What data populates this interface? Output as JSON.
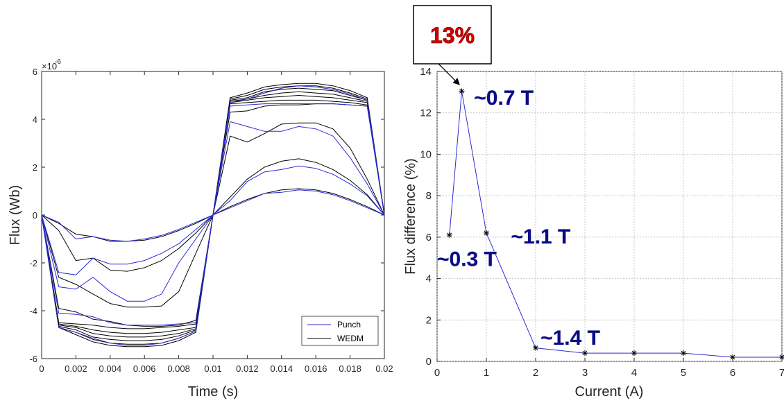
{
  "colors": {
    "punch": "#2a2ad6",
    "wedm": "#000000",
    "right_series": "#2a2ad6",
    "callout_text": "#d40000",
    "annotation_text": "#0a0a8c"
  },
  "chart_data": [
    {
      "type": "line",
      "title": "",
      "xlabel": "Time (s)",
      "ylabel": "Flux (Wb)",
      "y_exponent_label": "×10",
      "y_exponent_power": "-6",
      "xlim": [
        0,
        0.02
      ],
      "ylim": [
        -6,
        6
      ],
      "xticks": [
        "0",
        "0.002",
        "0.004",
        "0.006",
        "0.008",
        "0.01",
        "0.012",
        "0.014",
        "0.016",
        "0.018",
        "0.02"
      ],
      "yticks": [
        "-6",
        "-4",
        "-2",
        "0",
        "2",
        "4",
        "6"
      ],
      "grid": false,
      "legend_position": "bottom-right",
      "x": [
        0,
        0.001,
        0.002,
        0.003,
        0.004,
        0.005,
        0.006,
        0.007,
        0.008,
        0.009,
        0.01,
        0.011,
        0.012,
        0.013,
        0.014,
        0.015,
        0.016,
        0.017,
        0.018,
        0.019,
        0.02
      ],
      "series": [
        {
          "name": "Punch",
          "curves": [
            [
              0,
              -0.3,
              -1.0,
              -0.9,
              -1.05,
              -1.1,
              -1.0,
              -0.85,
              -0.6,
              -0.3,
              0,
              0.3,
              0.6,
              0.9,
              0.95,
              1.05,
              1.0,
              0.85,
              0.6,
              0.3,
              0
            ],
            [
              0,
              -2.4,
              -2.5,
              -1.8,
              -2.05,
              -2.05,
              -1.9,
              -1.6,
              -1.2,
              -0.6,
              0,
              0.6,
              1.4,
              1.8,
              1.9,
              2.05,
              1.95,
              1.7,
              1.3,
              0.8,
              0
            ],
            [
              0,
              -3.0,
              -3.1,
              -2.6,
              -3.2,
              -3.6,
              -3.6,
              -3.3,
              -2.0,
              -1.0,
              0,
              3.9,
              3.7,
              3.5,
              3.5,
              3.7,
              3.6,
              3.3,
              2.4,
              1.3,
              0
            ],
            [
              0,
              -4.1,
              -4.15,
              -4.25,
              -4.5,
              -4.6,
              -4.6,
              -4.6,
              -4.55,
              -4.5,
              0,
              4.55,
              4.6,
              4.65,
              4.65,
              4.65,
              4.65,
              4.65,
              4.6,
              4.55,
              0
            ],
            [
              0,
              -4.7,
              -4.9,
              -5.15,
              -5.35,
              -5.45,
              -5.45,
              -5.35,
              -5.15,
              -4.85,
              0,
              4.7,
              4.85,
              5.1,
              5.3,
              5.4,
              5.35,
              5.25,
              5.05,
              4.8,
              0
            ]
          ]
        },
        {
          "name": "WEDM",
          "curves": [
            [
              0,
              -0.35,
              -0.8,
              -0.9,
              -1.1,
              -1.1,
              -1.05,
              -0.9,
              -0.65,
              -0.35,
              0,
              0.35,
              0.65,
              0.9,
              1.05,
              1.1,
              1.05,
              0.9,
              0.65,
              0.35,
              0
            ],
            [
              0,
              -0.65,
              -1.9,
              -1.8,
              -2.3,
              -2.35,
              -2.2,
              -1.9,
              -1.4,
              -0.75,
              0,
              0.75,
              1.5,
              2.0,
              2.25,
              2.35,
              2.2,
              1.9,
              1.45,
              0.85,
              0
            ],
            [
              0,
              -2.6,
              -2.9,
              -3.3,
              -3.7,
              -3.85,
              -3.85,
              -3.8,
              -3.2,
              -1.6,
              0,
              3.3,
              3.05,
              3.4,
              3.8,
              3.85,
              3.85,
              3.6,
              2.8,
              1.5,
              0
            ],
            [
              0,
              -3.9,
              -4.05,
              -4.35,
              -4.45,
              -4.6,
              -4.65,
              -4.65,
              -4.6,
              -4.4,
              0,
              4.3,
              4.35,
              4.55,
              4.6,
              4.6,
              4.65,
              4.65,
              4.6,
              4.55,
              0
            ],
            [
              0,
              -4.5,
              -4.55,
              -4.6,
              -4.7,
              -4.75,
              -4.75,
              -4.7,
              -4.65,
              -4.55,
              0,
              4.65,
              4.7,
              4.75,
              4.8,
              4.8,
              4.8,
              4.75,
              4.7,
              4.6,
              0
            ],
            [
              0,
              -4.55,
              -4.65,
              -4.8,
              -4.9,
              -4.95,
              -4.95,
              -4.9,
              -4.8,
              -4.7,
              0,
              4.7,
              4.8,
              4.9,
              4.95,
              5.0,
              4.95,
              4.9,
              4.8,
              4.7,
              0
            ],
            [
              0,
              -4.6,
              -4.7,
              -4.95,
              -5.05,
              -5.1,
              -5.1,
              -5.05,
              -4.95,
              -4.75,
              0,
              4.75,
              4.85,
              5.0,
              5.1,
              5.15,
              5.1,
              5.05,
              4.9,
              4.75,
              0
            ],
            [
              0,
              -4.65,
              -4.8,
              -5.1,
              -5.2,
              -5.25,
              -5.25,
              -5.2,
              -5.05,
              -4.8,
              0,
              4.8,
              4.9,
              5.15,
              5.25,
              5.3,
              5.25,
              5.2,
              5.0,
              4.8,
              0
            ],
            [
              0,
              -4.7,
              -4.9,
              -5.2,
              -5.35,
              -5.4,
              -5.4,
              -5.35,
              -5.15,
              -4.85,
              0,
              4.85,
              5.0,
              5.25,
              5.35,
              5.4,
              5.4,
              5.3,
              5.1,
              4.85,
              0
            ],
            [
              0,
              -4.7,
              -5.0,
              -5.3,
              -5.45,
              -5.5,
              -5.5,
              -5.45,
              -5.25,
              -4.9,
              0,
              4.9,
              5.1,
              5.35,
              5.45,
              5.5,
              5.5,
              5.4,
              5.2,
              4.9,
              0
            ]
          ]
        }
      ],
      "legend": [
        "Punch",
        "WEDM"
      ]
    },
    {
      "type": "line",
      "title": "",
      "xlabel": "Current (A)",
      "ylabel": "Flux difference (%)",
      "xlim": [
        0,
        7
      ],
      "ylim": [
        0,
        14
      ],
      "xticks": [
        "0",
        "1",
        "2",
        "3",
        "4",
        "5",
        "6",
        "7"
      ],
      "yticks": [
        "0",
        "2",
        "4",
        "6",
        "8",
        "10",
        "12",
        "14"
      ],
      "grid": true,
      "marker": "asterisk",
      "x": [
        0.25,
        0.5,
        1,
        2,
        3,
        4,
        5,
        6,
        7
      ],
      "y": [
        6.1,
        13.05,
        6.2,
        0.65,
        0.4,
        0.4,
        0.4,
        0.2,
        0.2
      ],
      "annotations": [
        {
          "text": "~0.7 T",
          "x": 0.75,
          "y": 12.4
        },
        {
          "text": "~1.1 T",
          "x": 1.5,
          "y": 5.7
        },
        {
          "text": "~0.3 T",
          "x": 0.0,
          "y": 4.6
        },
        {
          "text": "~1.4 T",
          "x": 2.1,
          "y": 0.8
        }
      ],
      "callout": {
        "text": "13%",
        "points_to": {
          "x": 0.5,
          "y": 13.05
        }
      }
    }
  ]
}
